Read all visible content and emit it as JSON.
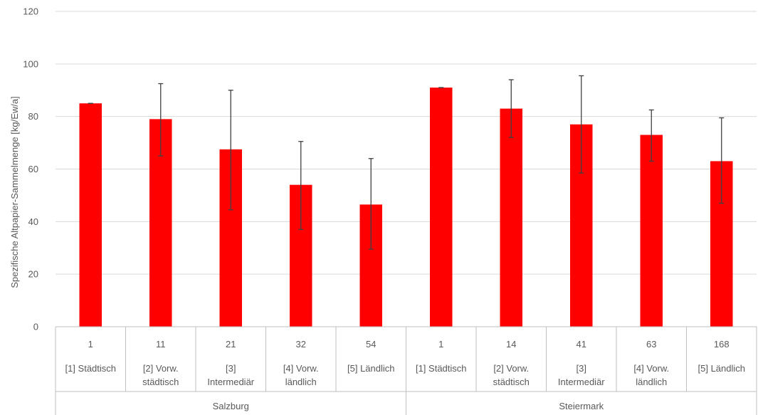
{
  "chart_data": {
    "type": "bar",
    "ylabel": "Spezifische Altpapier-Sammelmenge [kg/Ew/a]",
    "ylim": [
      0,
      120
    ],
    "yticks": [
      "0",
      "20",
      "40",
      "60",
      "80",
      "100",
      "120"
    ],
    "bar_color": "#ff0000",
    "error_color": "#404040",
    "grid": true,
    "groups": [
      {
        "name": "Salzburg",
        "categories": [
          {
            "count": "1",
            "lines": [
              "[1] Städtisch"
            ],
            "value": 85,
            "err_low": 85,
            "err_high": 85
          },
          {
            "count": "11",
            "lines": [
              "[2] Vorw.",
              "städtisch"
            ],
            "value": 79,
            "err_low": 65,
            "err_high": 92.5
          },
          {
            "count": "21",
            "lines": [
              "[3]",
              "Intermediär"
            ],
            "value": 67.5,
            "err_low": 44.5,
            "err_high": 90
          },
          {
            "count": "32",
            "lines": [
              "[4] Vorw.",
              "ländlich"
            ],
            "value": 54,
            "err_low": 37,
            "err_high": 70.5
          },
          {
            "count": "54",
            "lines": [
              "[5] Ländlich"
            ],
            "value": 46.5,
            "err_low": 29.5,
            "err_high": 64
          }
        ]
      },
      {
        "name": "Steiermark",
        "categories": [
          {
            "count": "1",
            "lines": [
              "[1] Städtisch"
            ],
            "value": 91,
            "err_low": 91,
            "err_high": 91
          },
          {
            "count": "14",
            "lines": [
              "[2] Vorw.",
              "städtisch"
            ],
            "value": 83,
            "err_low": 72,
            "err_high": 94
          },
          {
            "count": "41",
            "lines": [
              "[3]",
              "Intermediär"
            ],
            "value": 77,
            "err_low": 58.5,
            "err_high": 95.5
          },
          {
            "count": "63",
            "lines": [
              "[4] Vorw.",
              "ländlich"
            ],
            "value": 73,
            "err_low": 63,
            "err_high": 82.5
          },
          {
            "count": "168",
            "lines": [
              "[5] Ländlich"
            ],
            "value": 63,
            "err_low": 47,
            "err_high": 79.5
          }
        ]
      }
    ]
  }
}
